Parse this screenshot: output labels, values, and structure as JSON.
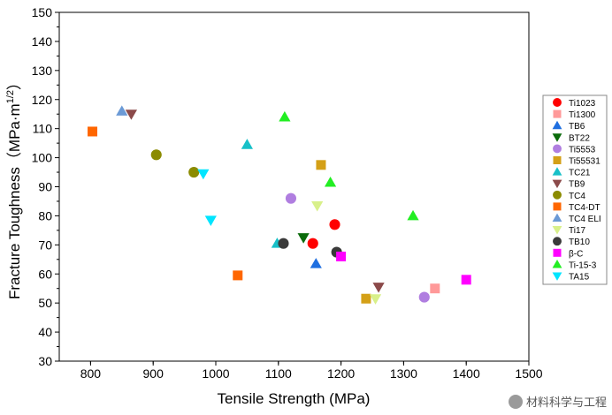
{
  "chart_data": {
    "type": "scatter",
    "title": "",
    "xlabel": "Tensile Strength (MPa)",
    "ylabel_main": "Fracture Toughness（MPa·m",
    "ylabel_sup": "1/2",
    "ylabel_close": "）",
    "xlim": [
      750,
      1500
    ],
    "ylim": [
      30,
      150
    ],
    "xticks": [
      "800",
      "900",
      "1000",
      "1100",
      "1200",
      "1300",
      "1400",
      "1500"
    ],
    "yticks": [
      "30",
      "40",
      "50",
      "60",
      "70",
      "80",
      "90",
      "100",
      "110",
      "120",
      "130",
      "140",
      "150"
    ],
    "legend_position": "right",
    "series": [
      {
        "name": "Ti1023",
        "marker": "circle",
        "color": "#ff0000",
        "points": [
          [
            1155,
            70.5
          ],
          [
            1190,
            77
          ]
        ]
      },
      {
        "name": "Ti1300",
        "marker": "square",
        "color": "#ff9999",
        "points": [
          [
            1350,
            55
          ]
        ]
      },
      {
        "name": "TB6",
        "marker": "triangle-up",
        "color": "#1f6fe0",
        "points": [
          [
            1160,
            63.5
          ]
        ]
      },
      {
        "name": "BT22",
        "marker": "triangle-down",
        "color": "#0b6b0b",
        "points": [
          [
            1140,
            72.5
          ]
        ]
      },
      {
        "name": "Ti5553",
        "marker": "circle",
        "color": "#b07ee0",
        "points": [
          [
            1120,
            86
          ],
          [
            1333,
            52
          ]
        ]
      },
      {
        "name": "Ti55531",
        "marker": "square",
        "color": "#d4a017",
        "points": [
          [
            1168,
            97.5
          ],
          [
            1240,
            51.5
          ]
        ]
      },
      {
        "name": "TC21",
        "marker": "triangle-up",
        "color": "#17c0c8",
        "points": [
          [
            1050,
            104.5
          ],
          [
            1098,
            70.5
          ]
        ]
      },
      {
        "name": "TB9",
        "marker": "triangle-down",
        "color": "#8b4a4a",
        "points": [
          [
            865,
            115
          ],
          [
            1260,
            55.5
          ]
        ]
      },
      {
        "name": "TC4",
        "marker": "circle",
        "color": "#8b8b00",
        "points": [
          [
            905,
            101
          ],
          [
            965,
            95
          ]
        ]
      },
      {
        "name": "TC4-DT",
        "marker": "square",
        "color": "#ff6600",
        "points": [
          [
            803,
            109
          ],
          [
            1035,
            59.5
          ]
        ]
      },
      {
        "name": "TC4 ELI",
        "marker": "triangle-up",
        "color": "#6b9ad6",
        "points": [
          [
            850,
            116
          ]
        ]
      },
      {
        "name": "Ti17",
        "marker": "triangle-down",
        "color": "#d8f08a",
        "points": [
          [
            1162,
            83.5
          ],
          [
            1255,
            51.5
          ]
        ]
      },
      {
        "name": "TB10",
        "marker": "circle",
        "color": "#3a3a3a",
        "points": [
          [
            1108,
            70.5
          ],
          [
            1193,
            67.5
          ]
        ]
      },
      {
        "name": "β-C",
        "marker": "square",
        "color": "#ff00ff",
        "points": [
          [
            1200,
            66
          ],
          [
            1400,
            58
          ]
        ]
      },
      {
        "name": "Ti-15-3",
        "marker": "triangle-up",
        "color": "#22ee22",
        "points": [
          [
            1110,
            114
          ],
          [
            1183,
            91.5
          ],
          [
            1315,
            80
          ]
        ]
      },
      {
        "name": "TA15",
        "marker": "triangle-down",
        "color": "#00e5ff",
        "points": [
          [
            980,
            94.5
          ],
          [
            992,
            78.5
          ]
        ]
      }
    ]
  },
  "watermark": "材料科学与工程"
}
